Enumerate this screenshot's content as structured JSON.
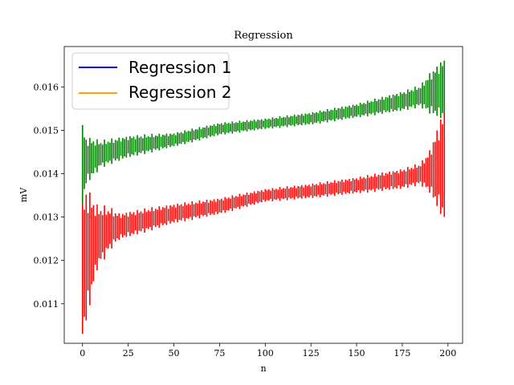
{
  "chart_data": {
    "type": "line",
    "title": "Regression",
    "xlabel": "n",
    "ylabel": "mV",
    "xlim": [
      -10,
      208
    ],
    "ylim": [
      0.01009,
      0.01693
    ],
    "xticks": [
      0,
      25,
      50,
      75,
      100,
      125,
      150,
      175,
      200
    ],
    "xtick_labels": [
      "0",
      "25",
      "50",
      "75",
      "100",
      "125",
      "150",
      "175",
      "200"
    ],
    "yticks": [
      0.011,
      0.012,
      0.013,
      0.014,
      0.015,
      0.016
    ],
    "ytick_labels": [
      "0.011",
      "0.012",
      "0.013",
      "0.014",
      "0.015",
      "0.016"
    ],
    "grid": false,
    "legend_position": "upper-left",
    "series": [
      {
        "name": "Regression 1",
        "color": "#0000ff",
        "errorbar_color": "#008000",
        "x_range": [
          0,
          198
        ],
        "shape": "central values rise from about 0.0142 at n=0 to about 0.0159 at n=198; error bars widest near the ends",
        "central_points": [
          [
            0,
            0.0142
          ],
          [
            3,
            0.01432
          ],
          [
            10,
            0.01445
          ],
          [
            25,
            0.01462
          ],
          [
            50,
            0.01478
          ],
          [
            75,
            0.01503
          ],
          [
            100,
            0.01515
          ],
          [
            125,
            0.01527
          ],
          [
            150,
            0.01545
          ],
          [
            175,
            0.01567
          ],
          [
            190,
            0.01585
          ],
          [
            198,
            0.01595
          ]
        ],
        "error_halfwidth": [
          [
            0,
            0.0008
          ],
          [
            2,
            0.00045
          ],
          [
            10,
            0.00025
          ],
          [
            50,
            0.00013
          ],
          [
            100,
            0.0001
          ],
          [
            150,
            0.00013
          ],
          [
            185,
            0.0002
          ],
          [
            190,
            0.00038
          ],
          [
            198,
            0.0006
          ]
        ]
      },
      {
        "name": "Regression 2",
        "color": "#ffa500",
        "errorbar_color": "#ff0000",
        "x_range": [
          0,
          198
        ],
        "shape": "central values rise steeply from about 0.0118 at n=0 to about 0.0128 at n=15, then slowly to about 0.0142 at n=198; error bars widest near the ends",
        "central_points": [
          [
            0,
            0.0118
          ],
          [
            3,
            0.0122
          ],
          [
            8,
            0.01253
          ],
          [
            15,
            0.01273
          ],
          [
            25,
            0.01283
          ],
          [
            50,
            0.01308
          ],
          [
            75,
            0.01325
          ],
          [
            100,
            0.0135
          ],
          [
            125,
            0.0136
          ],
          [
            150,
            0.01373
          ],
          [
            175,
            0.01388
          ],
          [
            190,
            0.01405
          ],
          [
            198,
            0.0142
          ]
        ],
        "error_halfwidth": [
          [
            0,
            0.0013
          ],
          [
            2,
            0.0013
          ],
          [
            8,
            0.0006
          ],
          [
            20,
            0.00025
          ],
          [
            50,
            0.00018
          ],
          [
            100,
            0.00012
          ],
          [
            150,
            0.00015
          ],
          [
            185,
            0.0002
          ],
          [
            190,
            0.0004
          ],
          [
            198,
            0.0011
          ]
        ]
      }
    ]
  }
}
